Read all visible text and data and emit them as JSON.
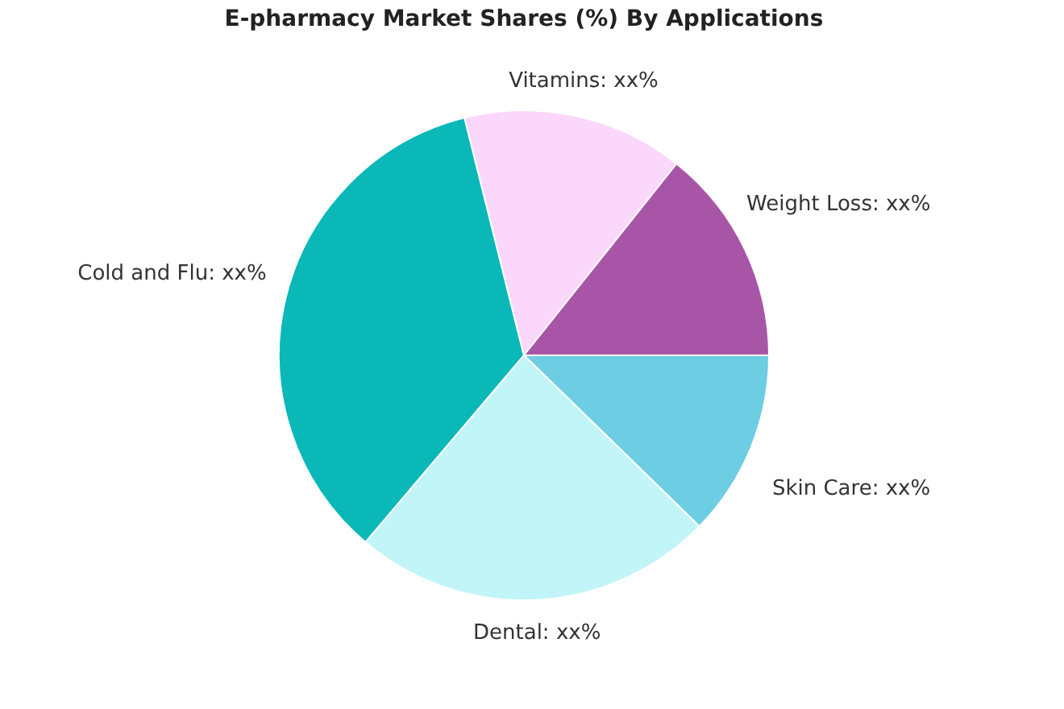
{
  "chart_data": {
    "type": "pie",
    "title": "E-pharmacy Market Shares (%) By Applications",
    "categories": [
      "Skin Care",
      "Dental",
      "Cold and Flu",
      "Vitamins",
      "Weight Loss"
    ],
    "values": [
      12.3,
      23.9,
      34.9,
      14.6,
      14.3
    ],
    "colors": [
      "#6dcde3",
      "#c2f5f7",
      "#0ab8b8",
      "#fbd7fb",
      "#a855a8"
    ],
    "value_labels": [
      "xx%",
      "xx%",
      "xx%",
      "xx%",
      "xx%"
    ],
    "legend": false
  }
}
